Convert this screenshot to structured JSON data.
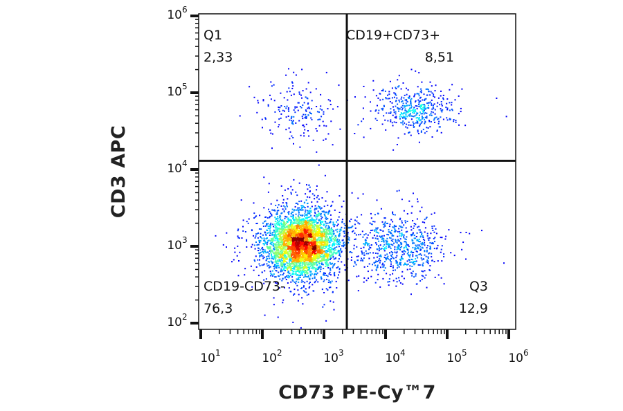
{
  "chart_data": {
    "type": "scatter",
    "subtype": "flow-cytometry density dot plot",
    "xlabel": "CD73 PE-Cy™7",
    "ylabel": "CD3 APC",
    "x_scale": "log",
    "y_scale": "log",
    "xlim": [
      8,
      1000000
    ],
    "ylim": [
      100,
      1000000
    ],
    "x_ticks": [
      {
        "base": "10",
        "exp": "1",
        "value": 10
      },
      {
        "base": "10",
        "exp": "2",
        "value": 100
      },
      {
        "base": "10",
        "exp": "3",
        "value": 1000
      },
      {
        "base": "10",
        "exp": "4",
        "value": 10000
      },
      {
        "base": "10",
        "exp": "5",
        "value": 100000
      },
      {
        "base": "10",
        "exp": "6",
        "value": 1000000
      }
    ],
    "y_ticks": [
      {
        "base": "10",
        "exp": "2",
        "value": 100
      },
      {
        "base": "10",
        "exp": "3",
        "value": 1000
      },
      {
        "base": "10",
        "exp": "4",
        "value": 10000
      },
      {
        "base": "10",
        "exp": "5",
        "value": 100000
      },
      {
        "base": "10",
        "exp": "6",
        "value": 1000000
      }
    ],
    "colormap": "density (blue-cyan-green-yellow-red)",
    "grid": false,
    "gates": {
      "x_threshold": 2350,
      "y_threshold": 13000
    },
    "quadrants": [
      {
        "name": "Q1",
        "percent": "2,33",
        "position": "top-left"
      },
      {
        "name": "CD19+CD73+",
        "percent": "8,51",
        "position": "top-right"
      },
      {
        "name": "CD19-CD73-",
        "percent": "76,3",
        "position": "bottom-left"
      },
      {
        "name": "Q3",
        "percent": "12,9",
        "position": "bottom-right"
      }
    ],
    "populations": [
      {
        "quadrant": "CD19-CD73-",
        "center_x": 430,
        "center_y": 1100,
        "spread_log_x": 0.28,
        "spread_log_y": 0.2,
        "fraction": 0.763
      },
      {
        "quadrant": "Q3",
        "center_x": 16000,
        "center_y": 1000,
        "spread_log_x": 0.35,
        "spread_log_y": 0.2,
        "fraction": 0.129
      },
      {
        "quadrant": "CD19+CD73+",
        "center_x": 30000,
        "center_y": 63000,
        "spread_log_x": 0.3,
        "spread_log_y": 0.15,
        "fraction": 0.0851
      },
      {
        "quadrant": "Q1",
        "center_x": 370,
        "center_y": 60000,
        "spread_log_x": 0.3,
        "spread_log_y": 0.18,
        "fraction": 0.0233
      }
    ]
  }
}
